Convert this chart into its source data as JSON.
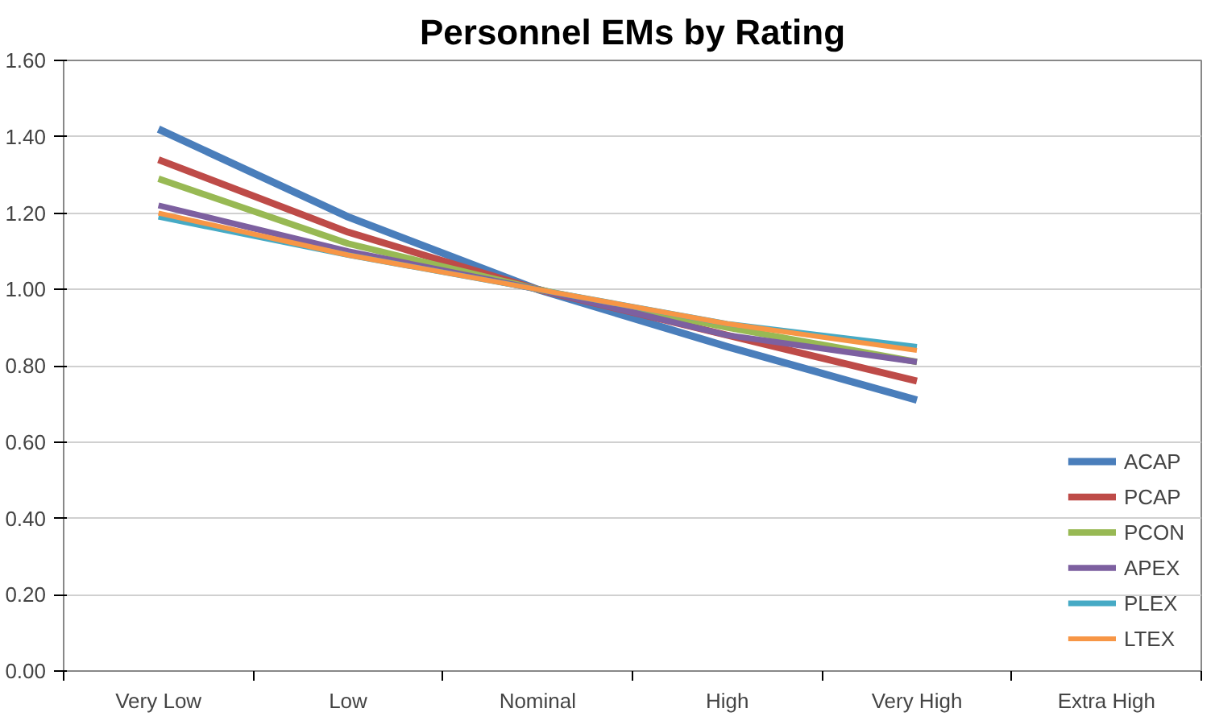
{
  "chart_data": {
    "type": "line",
    "title": "Personnel EMs by Rating",
    "categories": [
      "Very Low",
      "Low",
      "Nominal",
      "High",
      "Very High",
      "Extra High"
    ],
    "series": [
      {
        "name": "ACAP",
        "color": "#4a7ebb",
        "values": [
          1.42,
          1.19,
          1.0,
          0.85,
          0.71,
          null
        ]
      },
      {
        "name": "PCAP",
        "color": "#be4b48",
        "values": [
          1.34,
          1.15,
          1.0,
          0.88,
          0.76,
          null
        ]
      },
      {
        "name": "PCON",
        "color": "#98b954",
        "values": [
          1.29,
          1.12,
          1.0,
          0.9,
          0.81,
          null
        ]
      },
      {
        "name": "APEX",
        "color": "#7d60a0",
        "values": [
          1.22,
          1.1,
          1.0,
          0.88,
          0.81,
          null
        ]
      },
      {
        "name": "PLEX",
        "color": "#46aac5",
        "values": [
          1.19,
          1.09,
          1.0,
          0.91,
          0.85,
          null
        ]
      },
      {
        "name": "LTEX",
        "color": "#f79646",
        "values": [
          1.2,
          1.09,
          1.0,
          0.91,
          0.84,
          null
        ]
      }
    ],
    "ylim": [
      0,
      1.6
    ],
    "yticks": [
      {
        "value": 0,
        "label": "0.00"
      },
      {
        "value": 0.2,
        "label": "0.20"
      },
      {
        "value": 0.4,
        "label": "0.40"
      },
      {
        "value": 0.6,
        "label": "0.60"
      },
      {
        "value": 0.8,
        "label": "0.80"
      },
      {
        "value": 1.0,
        "label": "1.00"
      },
      {
        "value": 1.2,
        "label": "1.20"
      },
      {
        "value": 1.4,
        "label": "1.40"
      },
      {
        "value": 1.6,
        "label": "1.60"
      }
    ],
    "grid": "y",
    "legend": "bottom right",
    "marker": "none",
    "line_style": "solid"
  }
}
